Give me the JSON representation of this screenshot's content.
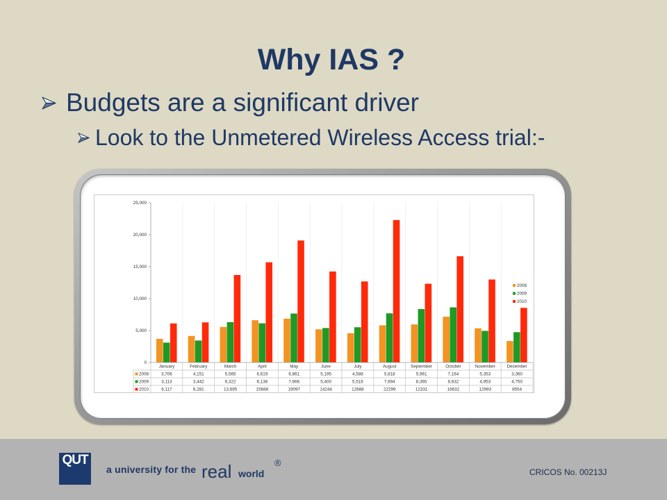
{
  "slide": {
    "title": "Why IAS ?",
    "bullets": [
      "Budgets are a significant driver",
      "Look to the Unmetered Wireless Access trial:-"
    ]
  },
  "icons": {
    "bullet": "arrow-bullet-icon",
    "logo": "qut-logo"
  },
  "footer": {
    "logo_text": "QUT",
    "tagline_prefix": "a university for the",
    "tagline_real": "real",
    "tagline_world": "world",
    "registered": "®",
    "cricos": "CRICOS No. 00213J"
  },
  "colors": {
    "background": "#ddd9c4",
    "text": "#1f3864",
    "footer": "#b3b3b3",
    "logo": "#1c3a6e"
  },
  "chart_data": {
    "type": "bar",
    "categories": [
      "January",
      "February",
      "March",
      "April",
      "May",
      "June",
      "July",
      "August",
      "September",
      "October",
      "November",
      "December"
    ],
    "series": [
      {
        "name": "2008",
        "color": "#f39322",
        "values": [
          3706,
          4151,
          5565,
          6619,
          6861,
          5195,
          4588,
          5818,
          5961,
          7164,
          5353,
          3360
        ],
        "labels": [
          "3,706",
          "4,151",
          "5,565",
          "6,619",
          "6,861",
          "5,195",
          "4,588",
          "5,818",
          "5,961",
          "7,164",
          "5,353",
          "3,360"
        ]
      },
      {
        "name": "2009",
        "color": "#1e9a24",
        "values": [
          3113,
          3442,
          6322,
          6138,
          7666,
          5400,
          5516,
          7694,
          8365,
          8632,
          4953,
          4750
        ],
        "labels": [
          "3,113",
          "3,442",
          "6,322",
          "6,138",
          "7,666",
          "5,400",
          "5,516",
          "7,694",
          "8,365",
          "8,632",
          "4,953",
          "4,750"
        ]
      },
      {
        "name": "2010",
        "color": "#ff2a0a",
        "values": [
          6117,
          6281,
          13695,
          15688,
          19097,
          14244,
          12688,
          22299,
          12331,
          16632,
          12993,
          8554
        ],
        "labels": [
          "6,117",
          "6,281",
          "13,695",
          "15688",
          "19097",
          "14244",
          "12688",
          "22299",
          "12331",
          "16632",
          "12993",
          "8554"
        ]
      }
    ],
    "ylim": [
      0,
      25000
    ],
    "yticks": [
      0,
      5000,
      10000,
      15000,
      20000,
      25000
    ],
    "ytick_labels": [
      "0",
      "5,000",
      "10,000",
      "15,000",
      "20,000",
      "25,000"
    ],
    "legend": "right",
    "data_table": true,
    "grid": false
  }
}
